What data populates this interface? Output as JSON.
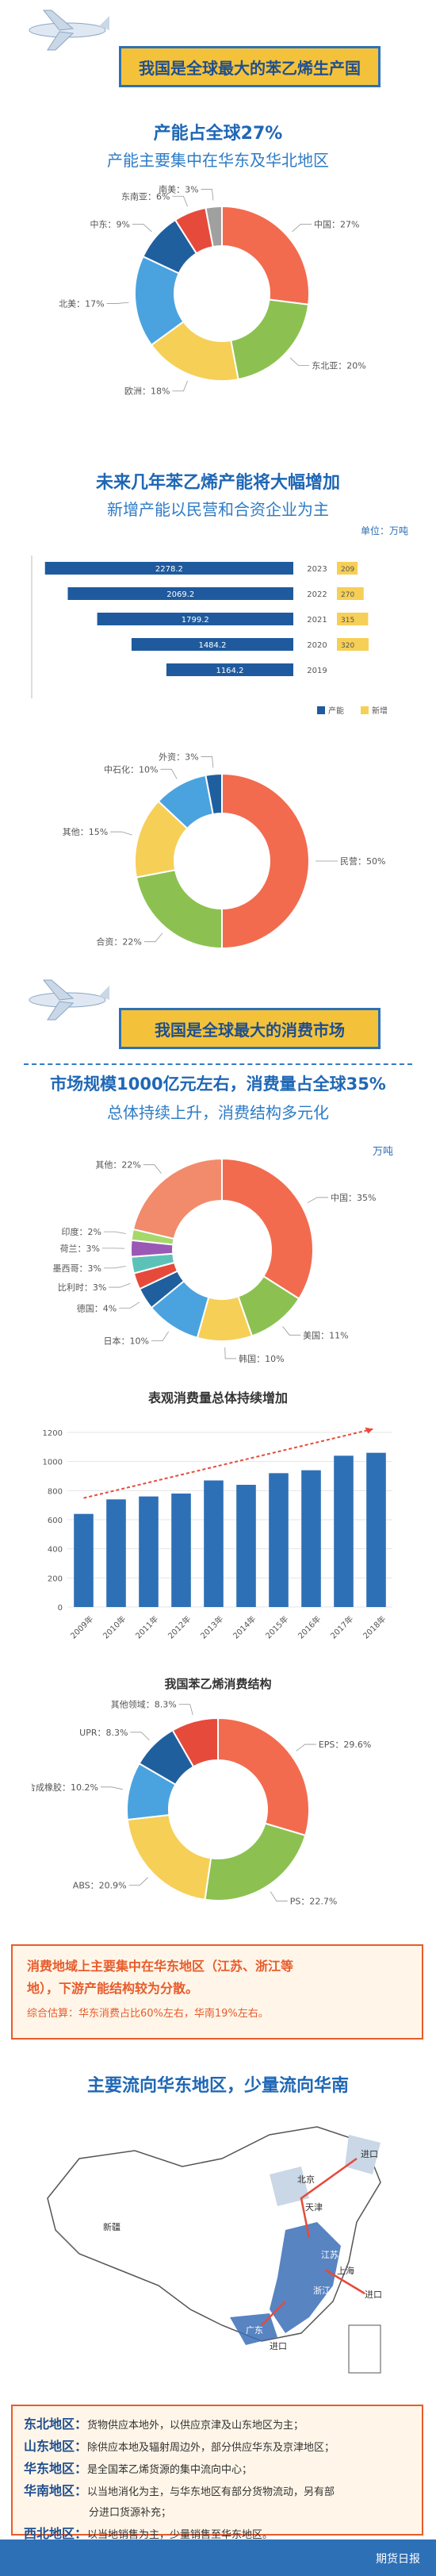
{
  "sec1": {
    "banner": "我国是全球最大的苯乙烯生产国",
    "headline": "产能占全球27%",
    "subline": "产能主要集中在华东及华北地区"
  },
  "sec2": {
    "headline": "未来几年苯乙烯产能将大幅增加",
    "subline": "新增产能以民营和合资企业为主",
    "unit": "单位：万吨"
  },
  "sec3": {
    "banner": "我国是全球最大的消费市场",
    "headline": "市场规模1000亿元左右，消费量占全球35%",
    "subline": "总体持续上升，消费结构多元化",
    "unit": "万吨"
  },
  "sec4": {
    "summary_line1": "消费地域上主要集中在华东地区（江苏、浙江等",
    "summary_line2": "地），下游产能结构较为分散。",
    "summary_small": "综合估算：华东消费占比60%左右，华南19%左右。",
    "headline": "主要流向华东地区，少量流向华南"
  },
  "map": {
    "labels": [
      "新疆",
      "北京",
      "天津",
      "江苏",
      "上海",
      "浙江",
      "广东",
      "进口",
      "进口",
      "进口"
    ]
  },
  "regions": [
    {
      "name": "东北地区：",
      "text": "货物供应本地外，以供应京津及山东地区为主；"
    },
    {
      "name": "山东地区：",
      "text": "除供应本地及辐射周边外，部分供应华东及京津地区；"
    },
    {
      "name": "华东地区：",
      "text": "是全国苯乙烯货源的集中流向中心；"
    },
    {
      "name": "华南地区：",
      "text": "以当地消化为主，与华东地区有部分货物流动，另有部"
    },
    {
      "name": "",
      "text": "分进口货源补充；"
    },
    {
      "name": "西北地区：",
      "text": "以当地销售为主，少量销售至华东地区。"
    }
  ],
  "footer": {
    "logo": "期货日报"
  },
  "colors": {
    "primary_blue": "#2e70b6",
    "banner_yellow": "#f4c23a",
    "accent_red": "#e85b2b"
  },
  "chart_data": [
    {
      "type": "pie",
      "title": "",
      "labels": [
        "中国",
        "东北亚",
        "欧洲",
        "北美",
        "中东",
        "东南亚",
        "南美"
      ],
      "label_text": [
        "中国：27%",
        "东北亚：20%",
        "欧洲：18%",
        "北美：17%",
        "中东：9%",
        "东南亚：6%",
        "南美：3%"
      ],
      "values": [
        27,
        20,
        18,
        17,
        9,
        6,
        3
      ],
      "colors": [
        "#f26b4f",
        "#8cc152",
        "#f6cf57",
        "#4aa3df",
        "#1f5f9e",
        "#e64a3b",
        "#a0a0a0"
      ]
    },
    {
      "type": "bar",
      "orientation": "horizontal",
      "categories": [
        "2023",
        "2022",
        "2021",
        "2020",
        "2019"
      ],
      "series": [
        {
          "name": "产能",
          "values": [
            2278.2,
            2069.2,
            1799.2,
            1484.2,
            1164.2
          ]
        },
        {
          "name": "新增",
          "values": [
            209,
            270,
            315,
            320,
            null
          ]
        }
      ],
      "value_labels": [
        "2278.2",
        "2069.2",
        "1799.2",
        "1484.2",
        "1164.2"
      ],
      "new_labels": [
        "209",
        "270",
        "315",
        "320"
      ],
      "legend": "bottom-right",
      "colors": [
        "#1f5a9e",
        "#f6cf57"
      ]
    },
    {
      "type": "pie",
      "labels": [
        "民营",
        "合资",
        "其他",
        "中石化",
        "外资"
      ],
      "label_text": [
        "民营：50%",
        "合资：22%",
        "其他：15%",
        "中石化：10%",
        "外资：3%"
      ],
      "values": [
        50,
        22,
        15,
        10,
        3
      ],
      "colors": [
        "#f26b4f",
        "#8cc152",
        "#f6cf57",
        "#4aa3df",
        "#1f5f9e"
      ]
    },
    {
      "type": "pie",
      "labels": [
        "中国",
        "美国",
        "韩国",
        "日本",
        "德国",
        "比利时",
        "墨西哥",
        "荷兰",
        "印度",
        "其他"
      ],
      "label_text": [
        "中国：35%",
        "美国：11%",
        "韩国：10%",
        "日本：10%",
        "德国：4%",
        "比利时：3%",
        "墨西哥：3%",
        "荷兰：3%",
        "印度：2%",
        "其他：22%"
      ],
      "values": [
        35,
        11,
        10,
        10,
        4,
        3,
        3,
        3,
        2,
        22
      ],
      "colors": [
        "#f26b4f",
        "#8cc152",
        "#f6cf57",
        "#4aa3df",
        "#1f5f9e",
        "#e64a3b",
        "#5cc2b8",
        "#9b59b6",
        "#a5d86a",
        "#f28b6b"
      ]
    },
    {
      "type": "bar",
      "title": "表观消费量总体持续增加",
      "categories": [
        "2009年",
        "2010年",
        "2011年",
        "2012年",
        "2013年",
        "2014年",
        "2015年",
        "2016年",
        "2017年",
        "2018年"
      ],
      "values": [
        640,
        740,
        760,
        780,
        870,
        840,
        920,
        940,
        1040,
        1060
      ],
      "ylim": [
        0,
        1200
      ],
      "yticks": [
        "0",
        "200",
        "400",
        "600",
        "800",
        "1000",
        "1200"
      ],
      "color": "#2e70b6"
    },
    {
      "type": "pie",
      "title": "我国苯乙烯消费结构",
      "labels": [
        "EPS",
        "PS",
        "ABS",
        "合成橡胶",
        "UPR",
        "其他领域"
      ],
      "label_text": [
        "EPS：29.6%",
        "PS：22.7%",
        "ABS：20.9%",
        "合成橡胶：10.2%",
        "UPR：8.3%",
        "其他领域：8.3%"
      ],
      "values": [
        29.6,
        22.7,
        20.9,
        10.2,
        8.3,
        8.3
      ],
      "colors": [
        "#f26b4f",
        "#8cc152",
        "#f6cf57",
        "#4aa3df",
        "#1f5f9e",
        "#e64a3b"
      ]
    }
  ]
}
